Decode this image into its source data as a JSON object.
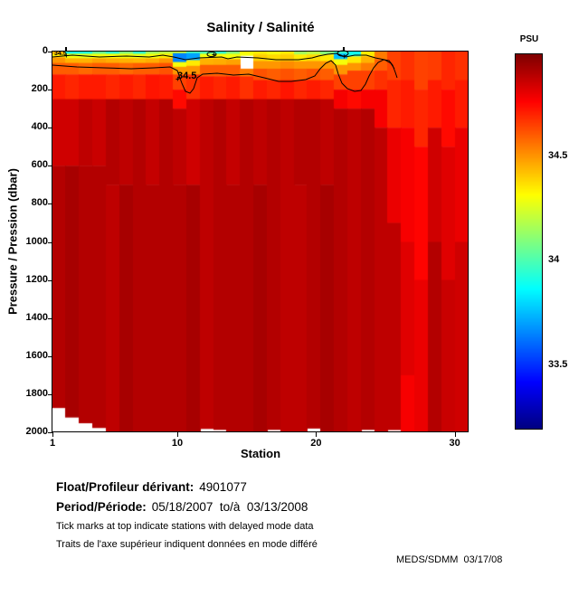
{
  "title": "Salinity / Salinité",
  "axes": {
    "x": {
      "label": "Station",
      "ticks": [
        1,
        10,
        20,
        30
      ],
      "range": [
        1,
        31
      ]
    },
    "y": {
      "label": "Pressure / Pression (dbar)",
      "ticks": [
        0,
        200,
        400,
        600,
        800,
        1000,
        1200,
        1400,
        1600,
        1800,
        2000
      ],
      "range": [
        0,
        2000
      ]
    }
  },
  "colorbar": {
    "label": "PSU",
    "ticks": [
      {
        "value": 34.5,
        "text": "34.5"
      },
      {
        "value": 34.0,
        "text": "34"
      },
      {
        "value": 33.5,
        "text": "33.5"
      }
    ],
    "vmin": 33.19,
    "vmax": 34.99
  },
  "contour": {
    "label_main": "34.5",
    "label_small": "34.5"
  },
  "annotations": {
    "float_label": "Float/Profileur dérivant:",
    "float_value": "4901077",
    "period_label": "Period/Période:",
    "period_value": "05/18/2007  to/à  03/13/2008",
    "note_en": "Tick marks at top indicate stations with delayed mode data",
    "note_fr": "Traits de l'axe supérieur indiquent données en mode différé",
    "credit": "MEDS/SDMM  03/17/08"
  },
  "chart_data": {
    "type": "heatmap",
    "title": "Salinity / Salinité",
    "xlabel": "Station",
    "ylabel": "Pressure / Pression (dbar)",
    "units": "PSU",
    "colormap": "jet",
    "x_range": [
      1,
      31
    ],
    "depth_range": [
      0,
      2000
    ],
    "salinity_range": [
      33.19,
      34.99
    ],
    "colorbar_ticks": [
      34.5,
      34.0,
      33.5
    ],
    "contour_level": 34.5,
    "stations": [
      {
        "station": 1,
        "bottom": 1870,
        "profile": [
          [
            0,
            34.45
          ],
          [
            12,
            34.35
          ],
          [
            30,
            34.5
          ],
          [
            60,
            34.6
          ],
          [
            120,
            34.72
          ],
          [
            250,
            34.85
          ],
          [
            600,
            34.9
          ]
        ]
      },
      {
        "station": 2,
        "bottom": 1920,
        "profile": [
          [
            0,
            33.9
          ],
          [
            12,
            34.3
          ],
          [
            35,
            34.45
          ],
          [
            60,
            34.6
          ],
          [
            120,
            34.7
          ],
          [
            250,
            34.85
          ],
          [
            600,
            34.92
          ]
        ]
      },
      {
        "station": 3,
        "bottom": 1950,
        "profile": [
          [
            0,
            33.92
          ],
          [
            12,
            34.28
          ],
          [
            35,
            34.45
          ],
          [
            60,
            34.58
          ],
          [
            120,
            34.72
          ],
          [
            250,
            34.88
          ],
          [
            600,
            34.9
          ]
        ]
      },
      {
        "station": 4,
        "bottom": 1975,
        "profile": [
          [
            0,
            34.05
          ],
          [
            12,
            34.3
          ],
          [
            35,
            34.48
          ],
          [
            60,
            34.6
          ],
          [
            120,
            34.72
          ],
          [
            250,
            34.86
          ],
          [
            600,
            34.9
          ]
        ]
      },
      {
        "station": 5,
        "bottom": 2000,
        "profile": [
          [
            0,
            33.95
          ],
          [
            12,
            34.32
          ],
          [
            35,
            34.46
          ],
          [
            60,
            34.6
          ],
          [
            120,
            34.7
          ],
          [
            250,
            34.9
          ],
          [
            700,
            34.88
          ]
        ]
      },
      {
        "station": 6,
        "bottom": 2000,
        "profile": [
          [
            0,
            34.1
          ],
          [
            12,
            34.3
          ],
          [
            35,
            34.45
          ],
          [
            60,
            34.58
          ],
          [
            120,
            34.72
          ],
          [
            250,
            34.88
          ],
          [
            700,
            34.92
          ]
        ]
      },
      {
        "station": 7,
        "bottom": 2000,
        "profile": [
          [
            0,
            33.95
          ],
          [
            12,
            34.28
          ],
          [
            35,
            34.44
          ],
          [
            60,
            34.6
          ],
          [
            120,
            34.7
          ],
          [
            250,
            34.9
          ]
        ]
      },
      {
        "station": 8,
        "bottom": 2000,
        "profile": [
          [
            0,
            34.15
          ],
          [
            12,
            34.3
          ],
          [
            35,
            34.46
          ],
          [
            60,
            34.6
          ],
          [
            120,
            34.73
          ],
          [
            250,
            34.87
          ],
          [
            700,
            34.9
          ]
        ]
      },
      {
        "station": 9,
        "bottom": 2000,
        "profile": [
          [
            0,
            34.2
          ],
          [
            12,
            34.35
          ],
          [
            35,
            34.5
          ],
          [
            60,
            34.62
          ],
          [
            120,
            34.72
          ],
          [
            250,
            34.9
          ]
        ]
      },
      {
        "station": 10,
        "bottom": 2000,
        "profile": [
          [
            0,
            34.25
          ],
          [
            8,
            33.65
          ],
          [
            55,
            34.3
          ],
          [
            80,
            34.5
          ],
          [
            120,
            34.65
          ],
          [
            200,
            34.75
          ],
          [
            300,
            34.88
          ],
          [
            700,
            34.9
          ]
        ]
      },
      {
        "station": 11,
        "bottom": 2000,
        "profile": [
          [
            0,
            34.0
          ],
          [
            8,
            33.7
          ],
          [
            45,
            34.35
          ],
          [
            75,
            34.5
          ],
          [
            120,
            34.68
          ],
          [
            250,
            34.85
          ],
          [
            700,
            34.92
          ]
        ]
      },
      {
        "station": 12,
        "bottom": 1980,
        "profile": [
          [
            0,
            34.0
          ],
          [
            12,
            34.3
          ],
          [
            35,
            34.45
          ],
          [
            70,
            34.6
          ],
          [
            130,
            34.72
          ],
          [
            250,
            34.88
          ]
        ]
      },
      {
        "station": 13,
        "bottom": 1985,
        "profile": [
          [
            0,
            33.95
          ],
          [
            12,
            34.32
          ],
          [
            35,
            34.46
          ],
          [
            70,
            34.6
          ],
          [
            130,
            34.7
          ],
          [
            250,
            34.9
          ]
        ]
      },
      {
        "station": 14,
        "bottom": 2000,
        "profile": [
          [
            0,
            34.1
          ],
          [
            12,
            34.3
          ],
          [
            40,
            34.48
          ],
          [
            70,
            34.6
          ],
          [
            130,
            34.72
          ],
          [
            250,
            34.87
          ],
          [
            700,
            34.9
          ]
        ]
      },
      {
        "station": 15,
        "bottom": 2000,
        "profile": [
          [
            0,
            34.3
          ],
          [
            20,
            null
          ],
          [
            90,
            34.55
          ],
          [
            130,
            34.68
          ],
          [
            250,
            34.9
          ]
        ]
      },
      {
        "station": 16,
        "bottom": 2000,
        "profile": [
          [
            0,
            34.35
          ],
          [
            15,
            34.4
          ],
          [
            50,
            34.5
          ],
          [
            90,
            34.62
          ],
          [
            150,
            34.72
          ],
          [
            250,
            34.88
          ],
          [
            700,
            34.92
          ]
        ]
      },
      {
        "station": 17,
        "bottom": 1985,
        "profile": [
          [
            0,
            34.3
          ],
          [
            15,
            34.38
          ],
          [
            50,
            34.5
          ],
          [
            90,
            34.6
          ],
          [
            150,
            34.7
          ],
          [
            250,
            34.9
          ]
        ]
      },
      {
        "station": 18,
        "bottom": 2000,
        "profile": [
          [
            0,
            34.35
          ],
          [
            15,
            34.4
          ],
          [
            50,
            34.52
          ],
          [
            90,
            34.62
          ],
          [
            150,
            34.73
          ],
          [
            250,
            34.88
          ]
        ]
      },
      {
        "station": 19,
        "bottom": 2000,
        "profile": [
          [
            0,
            34.15
          ],
          [
            15,
            34.35
          ],
          [
            50,
            34.5
          ],
          [
            90,
            34.6
          ],
          [
            150,
            34.7
          ],
          [
            250,
            34.9
          ],
          [
            700,
            34.88
          ]
        ]
      },
      {
        "station": 20,
        "bottom": 1978,
        "profile": [
          [
            0,
            34.2
          ],
          [
            15,
            34.38
          ],
          [
            50,
            34.5
          ],
          [
            90,
            34.62
          ],
          [
            150,
            34.72
          ],
          [
            250,
            34.9
          ]
        ]
      },
      {
        "station": 21,
        "bottom": 2000,
        "profile": [
          [
            0,
            34.1
          ],
          [
            15,
            34.35
          ],
          [
            50,
            34.5
          ],
          [
            90,
            34.6
          ],
          [
            150,
            34.7
          ],
          [
            250,
            34.88
          ],
          [
            700,
            34.92
          ]
        ]
      },
      {
        "station": 22,
        "bottom": 2000,
        "profile": [
          [
            0,
            33.95
          ],
          [
            10,
            33.75
          ],
          [
            40,
            34.3
          ],
          [
            70,
            34.5
          ],
          [
            120,
            34.65
          ],
          [
            200,
            34.78
          ],
          [
            300,
            34.9
          ]
        ]
      },
      {
        "station": 23,
        "bottom": 2000,
        "profile": [
          [
            0,
            33.9
          ],
          [
            25,
            34.35
          ],
          [
            60,
            34.5
          ],
          [
            100,
            34.65
          ],
          [
            200,
            34.75
          ],
          [
            300,
            34.88
          ]
        ]
      },
      {
        "station": 24,
        "bottom": 1985,
        "profile": [
          [
            0,
            34.35
          ],
          [
            25,
            34.45
          ],
          [
            60,
            34.55
          ],
          [
            100,
            34.65
          ],
          [
            200,
            34.78
          ],
          [
            300,
            34.9
          ]
        ]
      },
      {
        "station": 25,
        "bottom": 2000,
        "profile": [
          [
            0,
            34.55
          ],
          [
            40,
            34.6
          ],
          [
            100,
            34.68
          ],
          [
            200,
            34.78
          ],
          [
            400,
            34.88
          ]
        ]
      },
      {
        "station": 26,
        "bottom": 1986,
        "profile": [
          [
            0,
            34.65
          ],
          [
            150,
            34.7
          ],
          [
            400,
            34.8
          ],
          [
            900,
            34.88
          ]
        ]
      },
      {
        "station": 27,
        "bottom": 2000,
        "profile": [
          [
            0,
            34.68
          ],
          [
            150,
            34.72
          ],
          [
            400,
            34.78
          ],
          [
            1000,
            34.82
          ],
          [
            1700,
            34.78
          ]
        ]
      },
      {
        "station": 28,
        "bottom": 2000,
        "profile": [
          [
            0,
            34.65
          ],
          [
            200,
            34.7
          ],
          [
            500,
            34.76
          ],
          [
            1200,
            34.8
          ]
        ]
      },
      {
        "station": 29,
        "bottom": 2000,
        "profile": [
          [
            0,
            34.66
          ],
          [
            150,
            34.72
          ],
          [
            400,
            34.85
          ],
          [
            1000,
            34.9
          ]
        ]
      },
      {
        "station": 30,
        "bottom": 2000,
        "profile": [
          [
            0,
            34.7
          ],
          [
            200,
            34.75
          ],
          [
            500,
            34.82
          ],
          [
            1200,
            34.86
          ]
        ]
      },
      {
        "station": 31,
        "bottom": 2000,
        "profile": [
          [
            0,
            34.68
          ],
          [
            150,
            34.72
          ],
          [
            400,
            34.8
          ],
          [
            1000,
            34.85
          ]
        ]
      }
    ]
  }
}
